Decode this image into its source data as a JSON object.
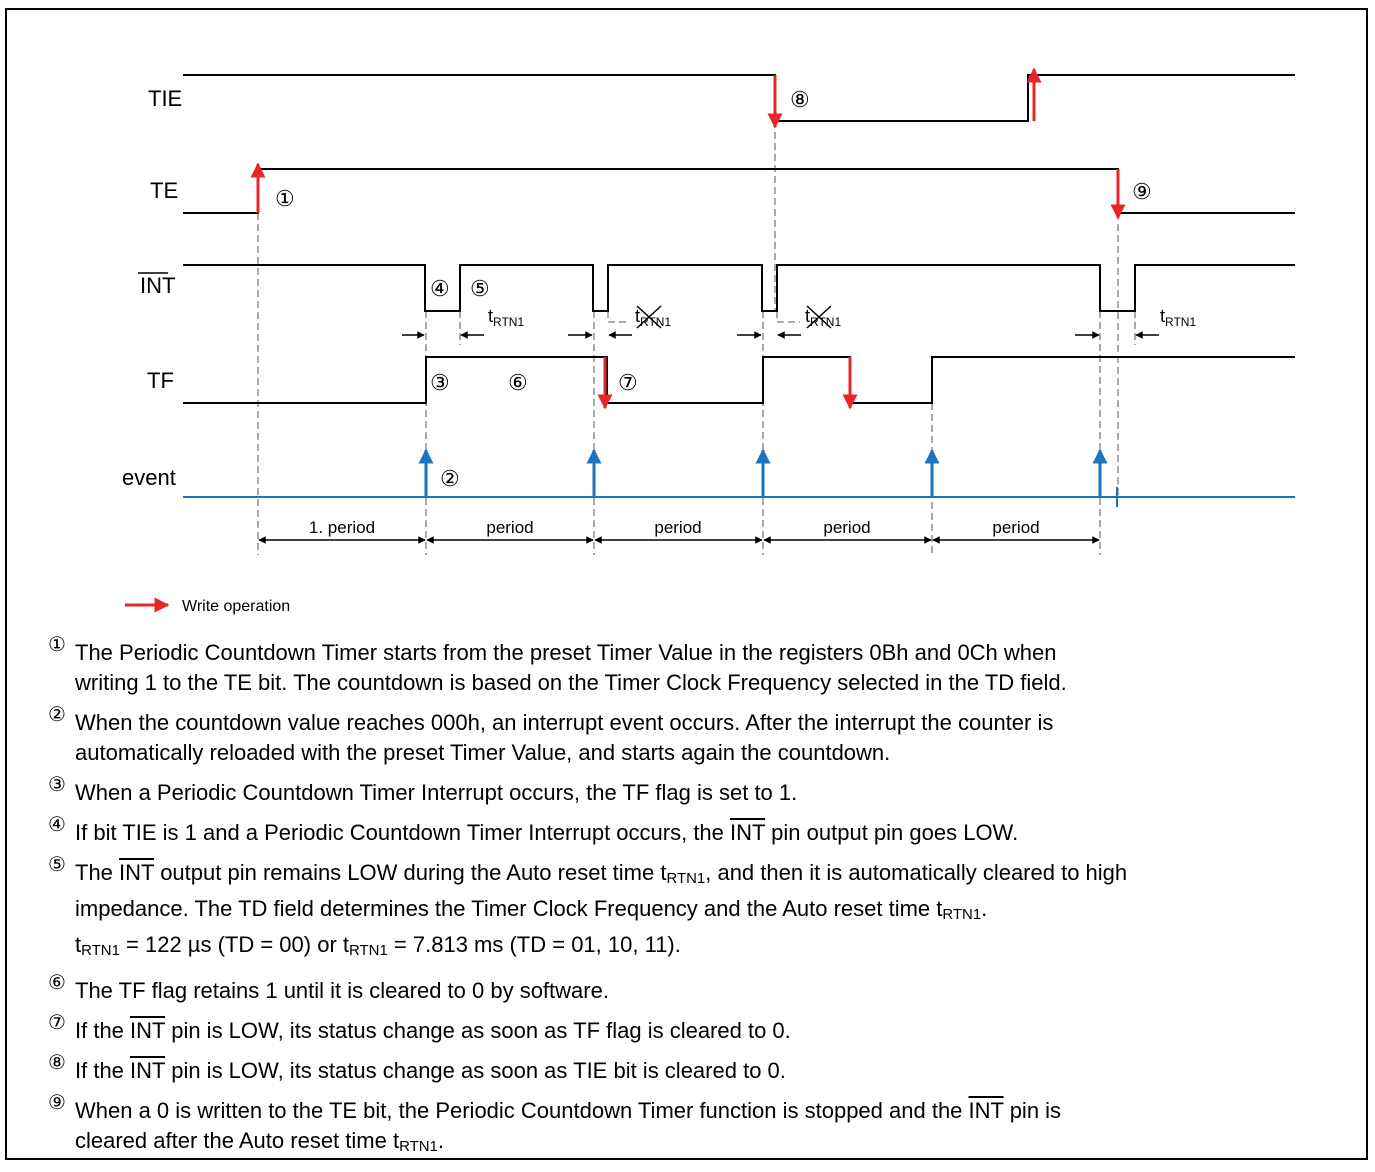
{
  "signals": [
    "TIE",
    "TE",
    "INT",
    "TF",
    "event"
  ],
  "diagram_markers": [
    "⑧",
    "①",
    "④",
    "⑤",
    "③",
    "⑥",
    "⑦",
    "②",
    "⑨"
  ],
  "timing_labels": [
    {
      "text": "t",
      "sub": "RTN1",
      "crossed": false
    },
    {
      "text": "t",
      "sub": "RTN1",
      "crossed": true
    },
    {
      "text": "t",
      "sub": "RTN1",
      "crossed": true
    },
    {
      "text": "t",
      "sub": "RTN1",
      "crossed": false
    }
  ],
  "periods": [
    "1. period",
    "period",
    "period",
    "period",
    "period"
  ],
  "legend": "Write operation",
  "notes": [
    {
      "marker": "①",
      "lines": [
        [
          "The Periodic Countdown Timer starts from the preset Timer Value in the registers 0Bh and 0Ch when"
        ],
        [
          "writing 1 to the TE bit. The countdown is based on the Timer Clock Frequency selected in the TD field."
        ]
      ]
    },
    {
      "marker": "②",
      "lines": [
        [
          "When the countdown value reaches 000h, an interrupt event occurs. After the interrupt the counter is"
        ],
        [
          "automatically reloaded with the preset Timer Value, and starts again the countdown."
        ]
      ]
    },
    {
      "marker": "③",
      "lines": [
        [
          "When a Periodic Countdown Timer Interrupt occurs, the TF flag is set to 1."
        ]
      ]
    },
    {
      "marker": "④",
      "lines": [
        [
          "If bit TIE is 1 and a Periodic Countdown Timer Interrupt occurs, the ",
          {
            "text": "INT",
            "style": "overline"
          },
          " pin output pin goes LOW."
        ]
      ]
    },
    {
      "marker": "⑤",
      "lines": [
        [
          "The ",
          {
            "text": "INT",
            "style": "overline"
          },
          " output pin remains LOW during the Auto reset time t",
          {
            "text": "RTN1",
            "style": "sub"
          },
          ", and then it is automatically cleared to high"
        ],
        [
          "impedance. The TD field determines the Timer Clock Frequency and the Auto reset time t",
          {
            "text": "RTN1",
            "style": "sub"
          },
          "."
        ],
        [
          "t",
          {
            "text": "RTN1",
            "style": "sub"
          },
          " = 122 µs (TD = 00) or t",
          {
            "text": "RTN1",
            "style": "sub"
          },
          " = 7.813 ms (TD = 01, 10, 11)."
        ]
      ]
    },
    {
      "marker": "⑥",
      "lines": [
        [
          "The TF flag retains 1 until it is cleared to 0 by software."
        ]
      ]
    },
    {
      "marker": "⑦",
      "lines": [
        [
          "If the ",
          {
            "text": "INT",
            "style": "overline"
          },
          " pin is LOW, its status change as soon as TF flag is cleared to 0."
        ]
      ]
    },
    {
      "marker": "⑧",
      "lines": [
        [
          "If the ",
          {
            "text": "INT",
            "style": "overline"
          },
          " pin is LOW, its status change as soon as TIE bit is cleared to 0."
        ]
      ]
    },
    {
      "marker": "⑨",
      "lines": [
        [
          "When a 0 is written to the TE bit, the Periodic Countdown Timer function is stopped and the ",
          {
            "text": "INT",
            "style": "overline"
          },
          " pin is"
        ],
        [
          "cleared after the Auto reset time t",
          {
            "text": "RTN1",
            "style": "sub"
          },
          "."
        ]
      ]
    }
  ]
}
